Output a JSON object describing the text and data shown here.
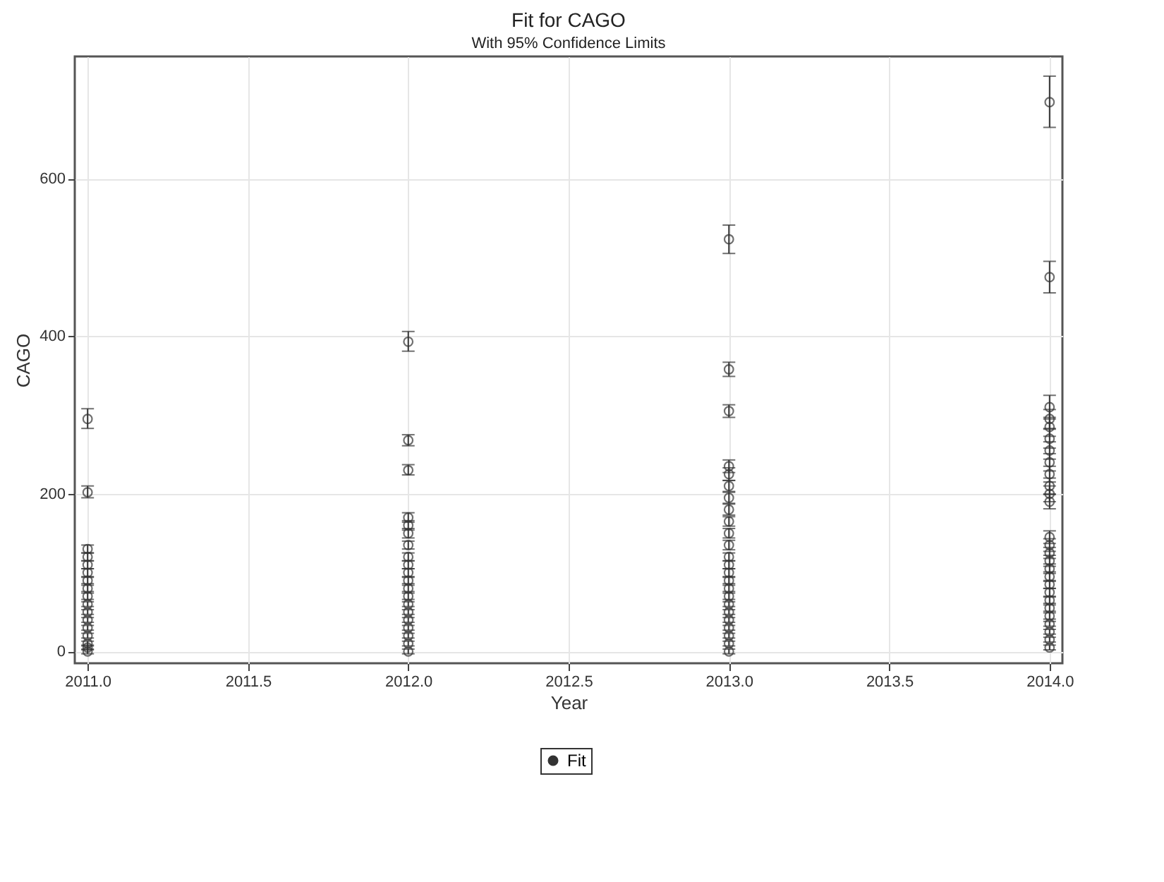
{
  "chart_data": {
    "type": "scatter",
    "title": "Fit for CAGO",
    "subtitle": "With 95% Confidence Limits",
    "xlabel": "Year",
    "ylabel": "CAGO",
    "xlim": [
      2010.96,
      2014.04
    ],
    "xticks": [
      {
        "value": 2011,
        "label": "2011.0"
      },
      {
        "value": 2011.5,
        "label": "2011.5"
      },
      {
        "value": 2012,
        "label": "2012.0"
      },
      {
        "value": 2012.5,
        "label": "2012.5"
      },
      {
        "value": 2013,
        "label": "2013.0"
      },
      {
        "value": 2013.5,
        "label": "2013.5"
      },
      {
        "value": 2014,
        "label": "2014.0"
      }
    ],
    "ylim": [
      -15,
      755
    ],
    "yticks": [
      0,
      200,
      400,
      600
    ],
    "grid": true,
    "legend": "bottom",
    "marker": "circle",
    "series": [
      {
        "name": "Fit",
        "color": "#333333",
        "x": [
          2011,
          2011,
          2011,
          2011,
          2011,
          2011,
          2011,
          2011,
          2011,
          2011,
          2011,
          2011,
          2011,
          2011,
          2011,
          2011,
          2011,
          2012,
          2012,
          2012,
          2012,
          2012,
          2012,
          2012,
          2012,
          2012,
          2012,
          2012,
          2012,
          2012,
          2012,
          2012,
          2012,
          2012,
          2012,
          2012,
          2012,
          2013,
          2013,
          2013,
          2013,
          2013,
          2013,
          2013,
          2013,
          2013,
          2013,
          2013,
          2013,
          2013,
          2013,
          2013,
          2013,
          2013,
          2013,
          2013,
          2013,
          2013,
          2013,
          2013,
          2013,
          2014,
          2014,
          2014,
          2014,
          2014,
          2014,
          2014,
          2014,
          2014,
          2014,
          2014,
          2014,
          2014,
          2014,
          2014,
          2014,
          2014,
          2014,
          2014,
          2014,
          2014,
          2014,
          2014,
          2014,
          2014,
          2014,
          2014
        ],
        "values": [
          295,
          202,
          130,
          120,
          110,
          100,
          90,
          80,
          70,
          60,
          50,
          40,
          30,
          20,
          10,
          5,
          0,
          393,
          268,
          230,
          170,
          160,
          150,
          135,
          120,
          110,
          100,
          90,
          80,
          70,
          60,
          50,
          40,
          30,
          20,
          10,
          0,
          523,
          358,
          305,
          235,
          225,
          210,
          195,
          180,
          165,
          150,
          135,
          120,
          110,
          100,
          90,
          80,
          70,
          60,
          50,
          40,
          30,
          20,
          10,
          0,
          697,
          475,
          310,
          295,
          285,
          270,
          255,
          240,
          225,
          210,
          200,
          190,
          145,
          135,
          125,
          115,
          105,
          95,
          85,
          75,
          65,
          55,
          45,
          35,
          25,
          15,
          5
        ],
        "errors": [
          [
            283,
            308
          ],
          [
            195,
            210
          ],
          5,
          5,
          5,
          5,
          4,
          4,
          4,
          3,
          3,
          3,
          3,
          3,
          3,
          3,
          3,
          [
            381,
            406
          ],
          [
            261,
            275
          ],
          [
            224,
            237
          ],
          6,
          6,
          6,
          5,
          5,
          5,
          5,
          4,
          4,
          4,
          3,
          3,
          3,
          3,
          3,
          3,
          3,
          [
            505,
            541
          ],
          [
            349,
            367
          ],
          [
            297,
            313
          ],
          8,
          8,
          7,
          7,
          7,
          6,
          6,
          6,
          5,
          5,
          5,
          4,
          4,
          4,
          3,
          3,
          3,
          3,
          3,
          3,
          3,
          [
            665,
            730
          ],
          [
            455,
            495
          ],
          [
            295,
            325
          ],
          12,
          12,
          12,
          11,
          11,
          10,
          10,
          10,
          9,
          8,
          8,
          7,
          7,
          6,
          6,
          5,
          5,
          4,
          4,
          4,
          3,
          3,
          3,
          3
        ]
      }
    ]
  }
}
